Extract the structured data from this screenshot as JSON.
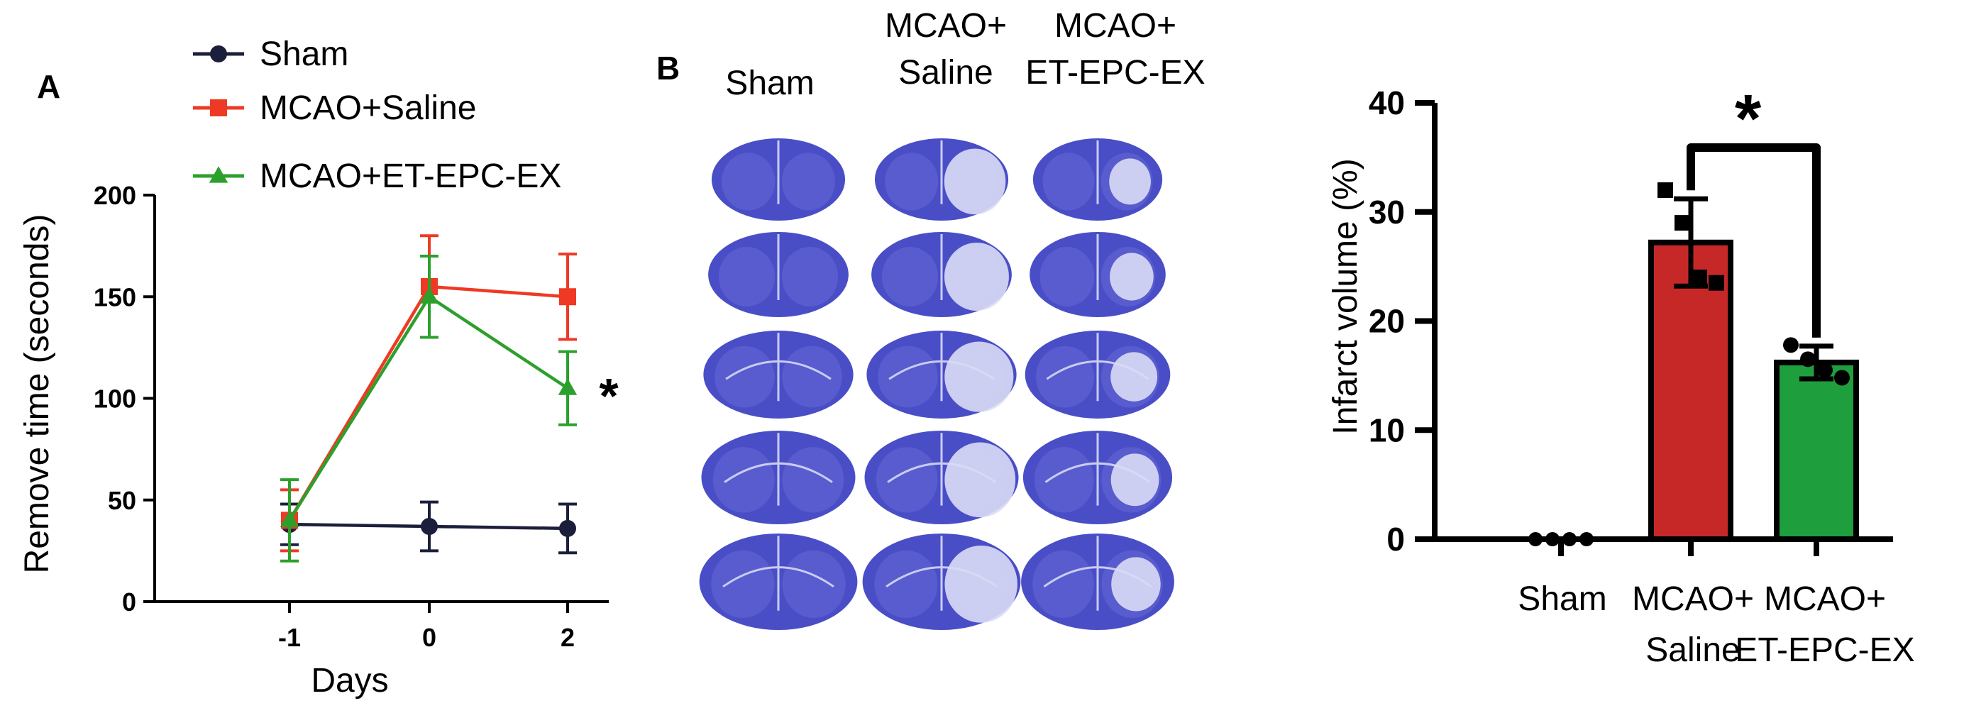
{
  "panel_labels": {
    "a": "A",
    "b": "B"
  },
  "legend": [
    {
      "name": "Sham"
    },
    {
      "name": "MCAO+Saline"
    },
    {
      "name": "MCAO+ET-EPC-EX"
    }
  ],
  "brain_panel": {
    "columns": [
      {
        "line1": "Sham",
        "line2": ""
      },
      {
        "line1": "MCAO+",
        "line2": "Saline"
      },
      {
        "line1": "MCAO+",
        "line2": "ET-EPC-EX"
      }
    ],
    "rows": 5,
    "stain_color": "#3a3fc2",
    "lesion_color": "#d9dcf5"
  },
  "chart_data": [
    {
      "type": "line",
      "xlabel": "Days",
      "ylabel": "Remove time (seconds)",
      "categories": [
        "-1",
        "0",
        "2"
      ],
      "ylim": [
        0,
        200
      ],
      "yticks": [
        "0",
        "50",
        "100",
        "150",
        "200"
      ],
      "legend_position": "top",
      "grid": false,
      "series": [
        {
          "name": "Sham",
          "color": "#1b1f3b",
          "marker": "circle",
          "values": [
            38,
            37,
            36
          ],
          "errors": [
            10,
            12,
            12
          ]
        },
        {
          "name": "MCAO+Saline",
          "color": "#ee3a24",
          "marker": "square",
          "values": [
            40,
            155,
            150
          ],
          "errors": [
            15,
            25,
            21
          ]
        },
        {
          "name": "MCAO+ET-EPC-EX",
          "color": "#2ca02c",
          "marker": "triangle",
          "values": [
            40,
            150,
            105
          ],
          "errors": [
            20,
            20,
            18
          ]
        }
      ],
      "annotations": [
        {
          "text": "*",
          "x": "2",
          "y": 105
        }
      ]
    },
    {
      "type": "bar",
      "xlabel": "",
      "ylabel": "Infarct volume (%)",
      "categories": [
        {
          "line1": "Sham",
          "line2": ""
        },
        {
          "line1": "MCAO+",
          "line2": "Saline"
        },
        {
          "line1": "MCAO+",
          "line2": "ET-EPC-EX"
        }
      ],
      "ylim": [
        0,
        40
      ],
      "yticks": [
        "0",
        "10",
        "20",
        "30",
        "40"
      ],
      "grid": false,
      "values": [
        0,
        27.2,
        16.2
      ],
      "errors": [
        0,
        4,
        1.5
      ],
      "colors": [
        "#c62828",
        "#c62828",
        "#1f9e3d"
      ],
      "points": [
        [
          0,
          0,
          0,
          0
        ],
        [
          32,
          29,
          24,
          23.5
        ],
        [
          17.8,
          16.5,
          15.5,
          14.8
        ]
      ],
      "significance": {
        "text": "*",
        "from": 1,
        "to": 2
      }
    }
  ]
}
